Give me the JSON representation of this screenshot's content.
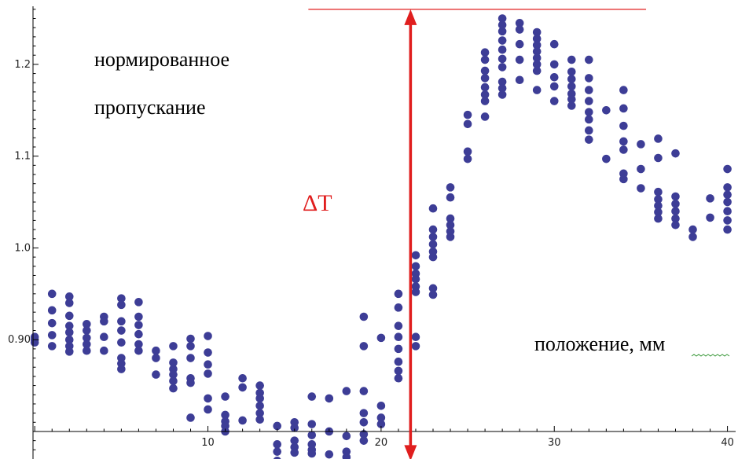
{
  "chart_data": {
    "type": "scatter",
    "annotations": {
      "ylabel_line1": "нормированное",
      "ylabel_line2": "пропускание",
      "xlabel": "положение, мм",
      "delta": "ΔT"
    },
    "xlim": [
      -0.1,
      40.2
    ],
    "ylim": [
      0.77,
      1.265
    ],
    "x_axis_at": 0.8,
    "x_ticks": [
      10,
      20,
      30,
      40
    ],
    "y_ticks": [
      0.9,
      1.0,
      1.1,
      1.2
    ],
    "x_tick_labels": [
      "10",
      "20",
      "30",
      "40"
    ],
    "y_tick_labels": [
      "0.90",
      "1.0",
      "1.1",
      "1.2"
    ],
    "point_color": "#3d3d96",
    "annotation_color": "#e01e1e",
    "grid": false,
    "delta_marker": {
      "x": 21.7,
      "upper_level": 1.26,
      "lower_level": 0.768,
      "upper_line_x": [
        15.8,
        35.3
      ],
      "lower_line_x": [
        7.5,
        26.4
      ]
    },
    "series": [
      {
        "points": [
          [
            0,
            0.9
          ],
          [
            0,
            0.897
          ],
          [
            0,
            0.903
          ],
          [
            1,
            0.95
          ],
          [
            1,
            0.932
          ],
          [
            1,
            0.918
          ],
          [
            1,
            0.905
          ],
          [
            1,
            0.893
          ],
          [
            2,
            0.947
          ],
          [
            2,
            0.94
          ],
          [
            2,
            0.926
          ],
          [
            2,
            0.915
          ],
          [
            2,
            0.908
          ],
          [
            2,
            0.9
          ],
          [
            2,
            0.893
          ],
          [
            2,
            0.887
          ],
          [
            3,
            0.917
          ],
          [
            3,
            0.91
          ],
          [
            3,
            0.902
          ],
          [
            3,
            0.895
          ],
          [
            3,
            0.888
          ],
          [
            4,
            0.925
          ],
          [
            4,
            0.92
          ],
          [
            4,
            0.903
          ],
          [
            4,
            0.888
          ],
          [
            5,
            0.945
          ],
          [
            5,
            0.938
          ],
          [
            5,
            0.92
          ],
          [
            5,
            0.91
          ],
          [
            5,
            0.897
          ],
          [
            5,
            0.88
          ],
          [
            5,
            0.874
          ],
          [
            5,
            0.868
          ],
          [
            6,
            0.941
          ],
          [
            6,
            0.925
          ],
          [
            6,
            0.916
          ],
          [
            6,
            0.906
          ],
          [
            6,
            0.895
          ],
          [
            6,
            0.888
          ],
          [
            7,
            0.888
          ],
          [
            7,
            0.88
          ],
          [
            7,
            0.862
          ],
          [
            8,
            0.893
          ],
          [
            8,
            0.875
          ],
          [
            8,
            0.868
          ],
          [
            8,
            0.862
          ],
          [
            8,
            0.855
          ],
          [
            8,
            0.847
          ],
          [
            9,
            0.901
          ],
          [
            9,
            0.893
          ],
          [
            9,
            0.88
          ],
          [
            9,
            0.858
          ],
          [
            9,
            0.853
          ],
          [
            9,
            0.815
          ],
          [
            10,
            0.904
          ],
          [
            10,
            0.886
          ],
          [
            10,
            0.873
          ],
          [
            10,
            0.863
          ],
          [
            10,
            0.836
          ],
          [
            10,
            0.824
          ],
          [
            11,
            0.838
          ],
          [
            11,
            0.818
          ],
          [
            11,
            0.811
          ],
          [
            11,
            0.806
          ],
          [
            11,
            0.8
          ],
          [
            12,
            0.858
          ],
          [
            12,
            0.848
          ],
          [
            12,
            0.812
          ],
          [
            13,
            0.85
          ],
          [
            13,
            0.842
          ],
          [
            13,
            0.836
          ],
          [
            13,
            0.828
          ],
          [
            13,
            0.82
          ],
          [
            13,
            0.813
          ],
          [
            14,
            0.806
          ],
          [
            14,
            0.786
          ],
          [
            14,
            0.778
          ],
          [
            14,
            0.768
          ],
          [
            15,
            0.81
          ],
          [
            15,
            0.804
          ],
          [
            15,
            0.79
          ],
          [
            15,
            0.783
          ],
          [
            15,
            0.777
          ],
          [
            16,
            0.838
          ],
          [
            16,
            0.808
          ],
          [
            16,
            0.796
          ],
          [
            16,
            0.786
          ],
          [
            16,
            0.78
          ],
          [
            16,
            0.776
          ],
          [
            17,
            0.836
          ],
          [
            17,
            0.8
          ],
          [
            17,
            0.775
          ],
          [
            18,
            0.844
          ],
          [
            18,
            0.795
          ],
          [
            18,
            0.778
          ],
          [
            18,
            0.772
          ],
          [
            19,
            0.925
          ],
          [
            19,
            0.893
          ],
          [
            19,
            0.844
          ],
          [
            19,
            0.82
          ],
          [
            19,
            0.81
          ],
          [
            19,
            0.797
          ],
          [
            19,
            0.79
          ],
          [
            20,
            0.902
          ],
          [
            20,
            0.828
          ],
          [
            20,
            0.815
          ],
          [
            20,
            0.808
          ],
          [
            21,
            0.95
          ],
          [
            21,
            0.935
          ],
          [
            21,
            0.915
          ],
          [
            21,
            0.903
          ],
          [
            21,
            0.89
          ],
          [
            21,
            0.876
          ],
          [
            21,
            0.866
          ],
          [
            21,
            0.858
          ],
          [
            22,
            0.992
          ],
          [
            22,
            0.98
          ],
          [
            22,
            0.972
          ],
          [
            22,
            0.966
          ],
          [
            22,
            0.958
          ],
          [
            22,
            0.952
          ],
          [
            22,
            0.903
          ],
          [
            22,
            0.893
          ],
          [
            23,
            1.043
          ],
          [
            23,
            1.02
          ],
          [
            23,
            1.012
          ],
          [
            23,
            1.004
          ],
          [
            23,
            0.996
          ],
          [
            23,
            0.99
          ],
          [
            23,
            0.956
          ],
          [
            23,
            0.949
          ],
          [
            24,
            1.066
          ],
          [
            24,
            1.055
          ],
          [
            24,
            1.032
          ],
          [
            24,
            1.025
          ],
          [
            24,
            1.018
          ],
          [
            24,
            1.012
          ],
          [
            25,
            1.145
          ],
          [
            25,
            1.135
          ],
          [
            25,
            1.105
          ],
          [
            25,
            1.097
          ],
          [
            26,
            1.213
          ],
          [
            26,
            1.205
          ],
          [
            26,
            1.193
          ],
          [
            26,
            1.185
          ],
          [
            26,
            1.175
          ],
          [
            26,
            1.167
          ],
          [
            26,
            1.16
          ],
          [
            26,
            1.143
          ],
          [
            27,
            1.25
          ],
          [
            27,
            1.243
          ],
          [
            27,
            1.236
          ],
          [
            27,
            1.226
          ],
          [
            27,
            1.216
          ],
          [
            27,
            1.206
          ],
          [
            27,
            1.197
          ],
          [
            27,
            1.181
          ],
          [
            27,
            1.174
          ],
          [
            27,
            1.167
          ],
          [
            28,
            1.245
          ],
          [
            28,
            1.238
          ],
          [
            28,
            1.222
          ],
          [
            28,
            1.205
          ],
          [
            28,
            1.183
          ],
          [
            29,
            1.235
          ],
          [
            29,
            1.228
          ],
          [
            29,
            1.221
          ],
          [
            29,
            1.214
          ],
          [
            29,
            1.207
          ],
          [
            29,
            1.2
          ],
          [
            29,
            1.193
          ],
          [
            29,
            1.172
          ],
          [
            30,
            1.222
          ],
          [
            30,
            1.2
          ],
          [
            30,
            1.186
          ],
          [
            30,
            1.176
          ],
          [
            30,
            1.16
          ],
          [
            31,
            1.205
          ],
          [
            31,
            1.192
          ],
          [
            31,
            1.184
          ],
          [
            31,
            1.176
          ],
          [
            31,
            1.168
          ],
          [
            31,
            1.162
          ],
          [
            31,
            1.155
          ],
          [
            32,
            1.205
          ],
          [
            32,
            1.185
          ],
          [
            32,
            1.172
          ],
          [
            32,
            1.16
          ],
          [
            32,
            1.148
          ],
          [
            32,
            1.14
          ],
          [
            32,
            1.128
          ],
          [
            32,
            1.118
          ],
          [
            33,
            1.15
          ],
          [
            33,
            1.097
          ],
          [
            34,
            1.172
          ],
          [
            34,
            1.152
          ],
          [
            34,
            1.133
          ],
          [
            34,
            1.116
          ],
          [
            34,
            1.107
          ],
          [
            34,
            1.081
          ],
          [
            34,
            1.075
          ],
          [
            35,
            1.113
          ],
          [
            35,
            1.086
          ],
          [
            35,
            1.065
          ],
          [
            36,
            1.119
          ],
          [
            36,
            1.098
          ],
          [
            36,
            1.061
          ],
          [
            36,
            1.053
          ],
          [
            36,
            1.046
          ],
          [
            36,
            1.039
          ],
          [
            36,
            1.032
          ],
          [
            37,
            1.103
          ],
          [
            37,
            1.056
          ],
          [
            37,
            1.048
          ],
          [
            37,
            1.04
          ],
          [
            37,
            1.032
          ],
          [
            37,
            1.025
          ],
          [
            38,
            1.02
          ],
          [
            38,
            1.012
          ],
          [
            39,
            1.054
          ],
          [
            39,
            1.033
          ],
          [
            40,
            1.086
          ],
          [
            40,
            1.066
          ],
          [
            40,
            1.058
          ],
          [
            40,
            1.05
          ],
          [
            40,
            1.04
          ],
          [
            40,
            1.03
          ],
          [
            40,
            1.02
          ]
        ]
      }
    ]
  }
}
